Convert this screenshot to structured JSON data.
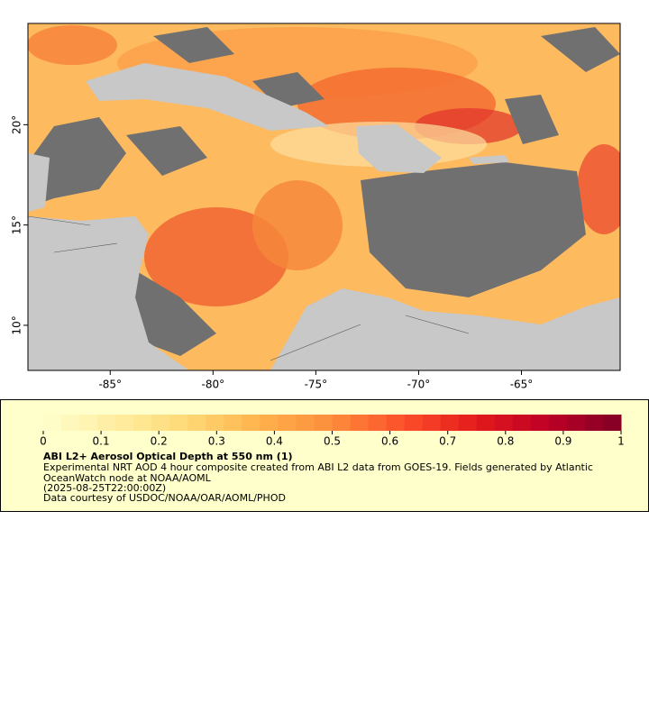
{
  "map": {
    "xlim": [
      -89.0,
      -60.2
    ],
    "ylim": [
      7.75,
      25.05
    ],
    "xticks": [
      {
        "value": -85,
        "label": "-85°"
      },
      {
        "value": -80,
        "label": "-80°"
      },
      {
        "value": -75,
        "label": "-75°"
      },
      {
        "value": -70,
        "label": "-70°"
      },
      {
        "value": -65,
        "label": "-65°"
      }
    ],
    "yticks": [
      {
        "value": 10,
        "label": "10°"
      },
      {
        "value": 15,
        "label": "15°"
      },
      {
        "value": 20,
        "label": "20°"
      }
    ]
  },
  "legend": {
    "clim": [
      0,
      1
    ],
    "ticks": [
      0,
      0.1,
      0.2,
      0.3,
      0.4,
      0.5,
      0.6,
      0.7,
      0.8,
      0.9,
      1
    ],
    "colors": [
      "#ffffcc",
      "#ffeda0",
      "#fed976",
      "#feb24c",
      "#fd8d3c",
      "#fc4e2a",
      "#e31a1c",
      "#bd0026",
      "#800026"
    ],
    "title": "ABI L2+ Aerosol Optical Depth at 550 nm (1)",
    "description": "Experimental NRT AOD 4 hour composite created from ABI L2 data from GOES-19. Fields generated by Atlantic OceanWatch node at NOAA/AOML",
    "time": "(2025-08-25T22:00:00Z)",
    "credit": "Data courtesy of USDOC/NOAA/OAR/AOML/PHOD"
  }
}
